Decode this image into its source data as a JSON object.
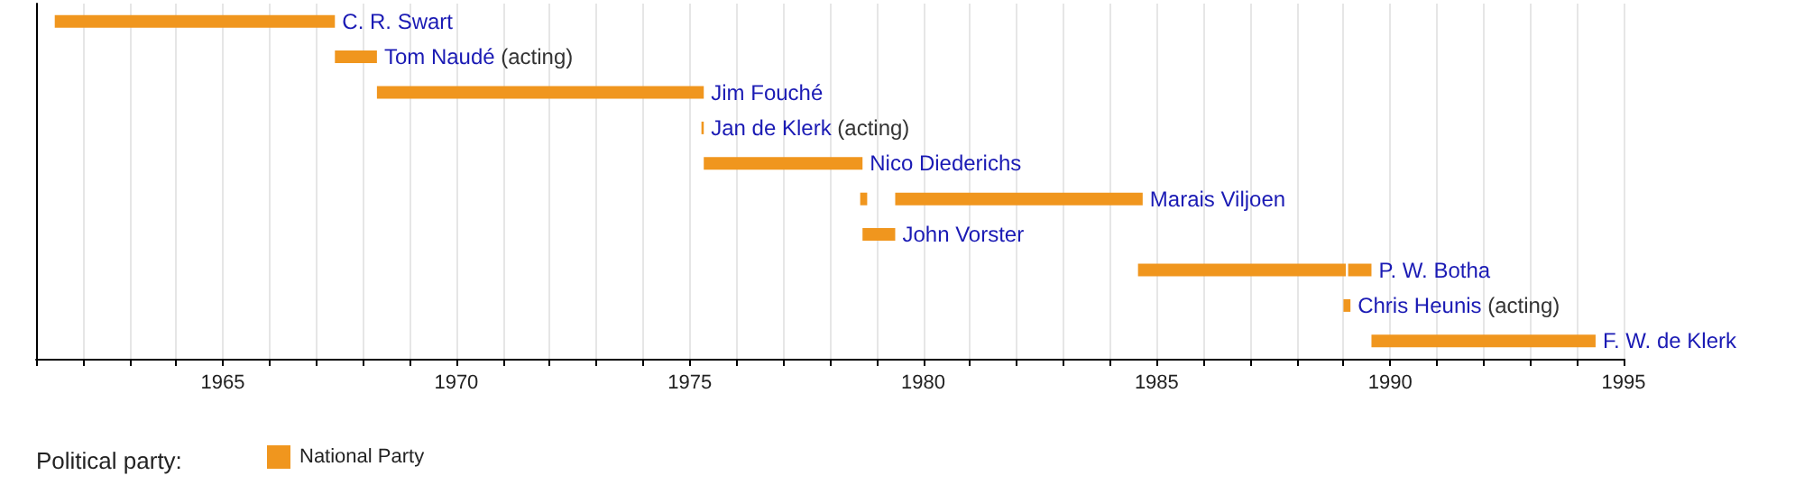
{
  "chart_data": {
    "type": "bar",
    "orientation": "horizontal",
    "categories": [
      "C. R. Swart",
      "Tom Naudé (acting)",
      "Jim Fouché",
      "Jan de Klerk (acting)",
      "Nico Diederichs",
      "Marais Viljoen",
      "John Vorster",
      "P. W. Botha",
      "Chris Heunis (acting)",
      "F. W. de Klerk"
    ],
    "series": [
      {
        "name": "National Party",
        "color": "#f0961e",
        "base": [
          1961.4,
          1967.4,
          1968.3,
          1975.25,
          1975.3,
          1978.65,
          1978.7,
          1984.6,
          1989.0,
          1989.6
        ],
        "values": [
          6.0,
          0.9,
          7.0,
          0.05,
          3.4,
          0.15,
          0.7,
          4.45,
          0.15,
          4.8
        ]
      },
      {
        "color": "#f0961e",
        "base": [
          null,
          null,
          null,
          null,
          null,
          1979.4,
          null,
          1989.1,
          null,
          null
        ],
        "values": [
          null,
          null,
          null,
          null,
          null,
          5.3,
          null,
          0.5,
          null,
          null
        ]
      }
    ],
    "xlim": [
      1961,
      1995
    ],
    "xticks": [
      {
        "value": 1961,
        "label": null
      },
      {
        "value": 1962,
        "label": null
      },
      {
        "value": 1963,
        "label": null
      },
      {
        "value": 1964,
        "label": null
      },
      1965,
      {
        "value": 1966,
        "label": null
      },
      {
        "value": 1967,
        "label": null
      },
      {
        "value": 1968,
        "label": null
      },
      {
        "value": 1969,
        "label": null
      },
      1970,
      {
        "value": 1971,
        "label": null
      },
      {
        "value": 1972,
        "label": null
      },
      {
        "value": 1973,
        "label": null
      },
      {
        "value": 1974,
        "label": null
      },
      1975,
      {
        "value": 1976,
        "label": null
      },
      {
        "value": 1977,
        "label": null
      },
      {
        "value": 1978,
        "label": null
      },
      {
        "value": 1979,
        "label": null
      },
      1980,
      {
        "value": 1981,
        "label": null
      },
      {
        "value": 1982,
        "label": null
      },
      {
        "value": 1983,
        "label": null
      },
      {
        "value": 1984,
        "label": null
      },
      1985,
      {
        "value": 1986,
        "label": null
      },
      {
        "value": 1987,
        "label": null
      },
      {
        "value": 1988,
        "label": null
      },
      {
        "value": 1989,
        "label": null
      },
      1990,
      {
        "value": 1991,
        "label": null
      },
      {
        "value": 1992,
        "label": null
      },
      {
        "value": 1993,
        "label": null
      },
      {
        "value": 1994,
        "label": null
      },
      1995
    ],
    "grid": "x",
    "tick_labels": "x",
    "legend": "bottom left",
    "legend_title": "Political party:"
  }
}
